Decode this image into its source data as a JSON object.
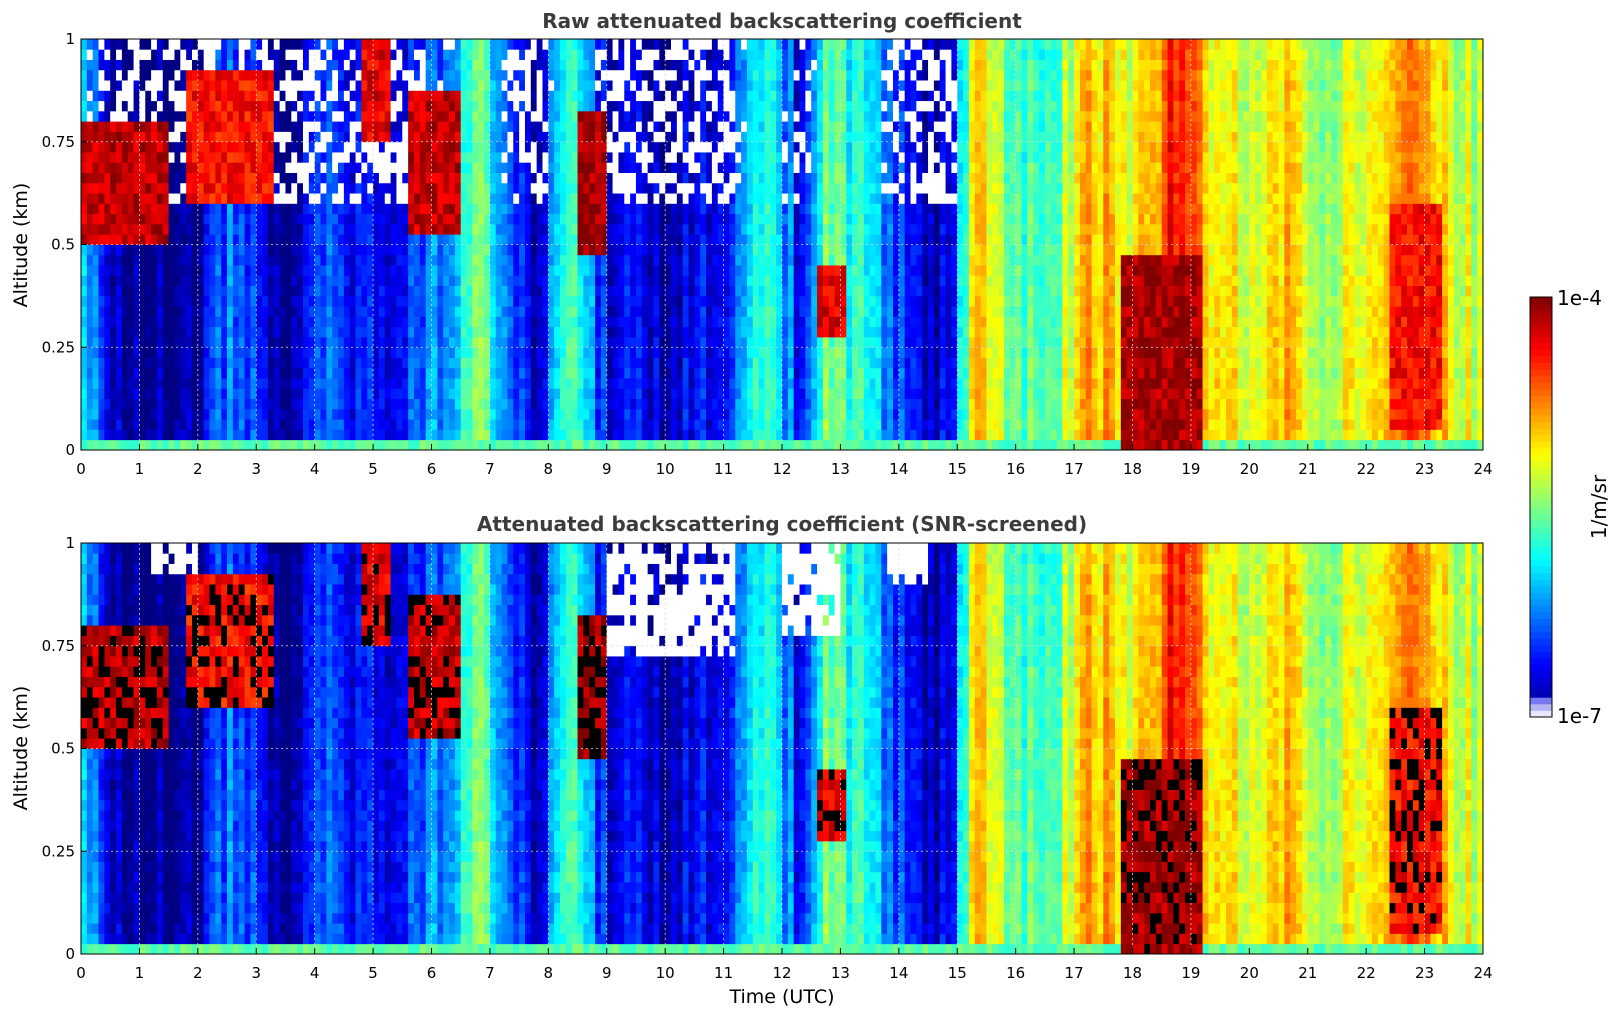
{
  "chart_data": [
    {
      "type": "heatmap",
      "id": "raw",
      "title": "Raw attenuated backscattering coefficient",
      "xlabel": "",
      "ylabel": "Altitude (km)",
      "xlim": [
        0,
        24
      ],
      "ylim": [
        0,
        1
      ],
      "x_ticks": [
        "0",
        "1",
        "2",
        "3",
        "4",
        "5",
        "6",
        "7",
        "8",
        "9",
        "10",
        "11",
        "12",
        "13",
        "14",
        "15",
        "16",
        "17",
        "18",
        "19",
        "20",
        "21",
        "22",
        "23",
        "24"
      ],
      "y_ticks": [
        "0",
        "0.25",
        "0.5",
        "0.75",
        "1"
      ],
      "grid": true,
      "field": {
        "time_profile_log10": [
          [
            0,
            -5.6
          ],
          [
            0.4,
            -6.7
          ],
          [
            1,
            -6.9
          ],
          [
            2,
            -6.8
          ],
          [
            2.5,
            -6.2
          ],
          [
            3,
            -6.5
          ],
          [
            3.5,
            -6.9
          ],
          [
            4,
            -6.3
          ],
          [
            5,
            -6.6
          ],
          [
            6,
            -6.3
          ],
          [
            6.8,
            -5.4
          ],
          [
            7.3,
            -6.2
          ],
          [
            7.7,
            -6.8
          ],
          [
            8.4,
            -5.7
          ],
          [
            9,
            -6.6
          ],
          [
            10,
            -6.8
          ],
          [
            11,
            -6.5
          ],
          [
            11.8,
            -5.6
          ],
          [
            12.3,
            -6.6
          ],
          [
            12.8,
            -5.4
          ],
          [
            13.5,
            -5.9
          ],
          [
            14.2,
            -6.6
          ],
          [
            14.9,
            -6.7
          ],
          [
            15.3,
            -4.8
          ],
          [
            16,
            -5.6
          ],
          [
            16.6,
            -5.7
          ],
          [
            17.2,
            -4.7
          ],
          [
            18,
            -5.2
          ],
          [
            18.7,
            -4.3
          ],
          [
            19.3,
            -4.9
          ],
          [
            20,
            -5.2
          ],
          [
            20.6,
            -4.8
          ],
          [
            21.3,
            -5.3
          ],
          [
            22,
            -5.0
          ],
          [
            22.7,
            -4.6
          ],
          [
            23.3,
            -5.0
          ],
          [
            24,
            -5.3
          ]
        ],
        "features": [
          {
            "t0": 0.0,
            "t1": 1.5,
            "z0": 0.5,
            "z1": 0.8,
            "log10": -4.2
          },
          {
            "t0": 1.8,
            "t1": 3.3,
            "z0": 0.6,
            "z1": 0.92,
            "log10": -4.4
          },
          {
            "t0": 4.8,
            "t1": 5.3,
            "z0": 0.75,
            "z1": 1.0,
            "log10": -4.3
          },
          {
            "t0": 5.6,
            "t1": 6.5,
            "z0": 0.52,
            "z1": 0.88,
            "log10": -4.2
          },
          {
            "t0": 8.5,
            "t1": 9.0,
            "z0": 0.48,
            "z1": 0.82,
            "log10": -4.1
          },
          {
            "t0": 12.6,
            "t1": 13.1,
            "z0": 0.28,
            "z1": 0.45,
            "log10": -4.3
          },
          {
            "t0": 17.8,
            "t1": 19.2,
            "z0": 0.0,
            "z1": 0.48,
            "log10": -4.1
          },
          {
            "t0": 22.4,
            "t1": 23.3,
            "z0": 0.05,
            "z1": 0.6,
            "log10": -4.4
          }
        ]
      }
    },
    {
      "type": "heatmap",
      "id": "screened",
      "title": "Attenuated backscattering coefficient (SNR-screened)",
      "xlabel": "Time (UTC)",
      "ylabel": "Altitude (km)",
      "xlim": [
        0,
        24
      ],
      "ylim": [
        0,
        1
      ],
      "x_ticks": [
        "0",
        "1",
        "2",
        "3",
        "4",
        "5",
        "6",
        "7",
        "8",
        "9",
        "10",
        "11",
        "12",
        "13",
        "14",
        "15",
        "16",
        "17",
        "18",
        "19",
        "20",
        "21",
        "22",
        "23",
        "24"
      ],
      "y_ticks": [
        "0",
        "0.25",
        "0.5",
        "0.75",
        "1"
      ],
      "grid": true,
      "screened_gaps": [
        {
          "t0": 9.0,
          "t1": 11.2,
          "z_from": 0.72
        },
        {
          "t0": 12.0,
          "t1": 13.0,
          "z_from": 0.78
        },
        {
          "t0": 1.2,
          "t1": 2.0,
          "z_from": 0.92
        },
        {
          "t0": 13.8,
          "t1": 14.5,
          "z_from": 0.9
        }
      ]
    }
  ],
  "colorbar": {
    "label": "1/m/sr",
    "max_label": "1e-4",
    "min_label": "1e-7",
    "range_log10": [
      -7,
      -4
    ],
    "colormap": "jet"
  }
}
